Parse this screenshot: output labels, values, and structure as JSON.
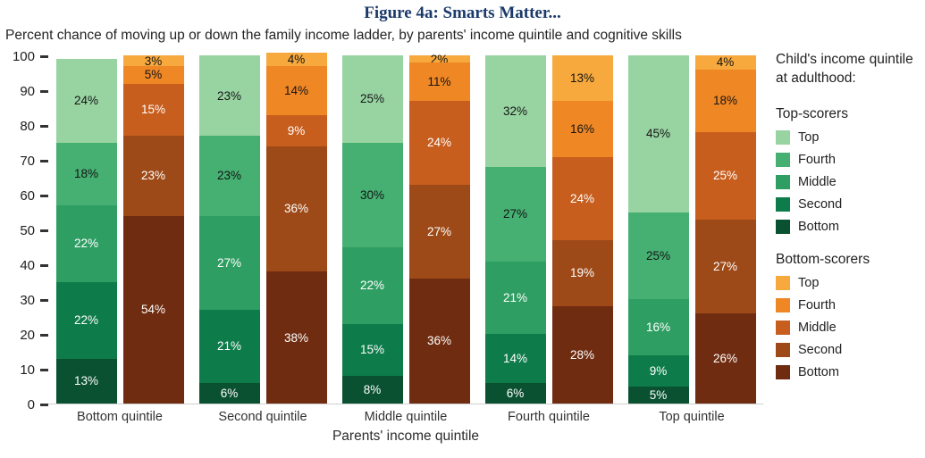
{
  "title": "Figure 4a: Smarts Matter...",
  "subtitle": "Percent chance of moving up or down the family income ladder, by parents' income quintile and cognitive skills",
  "legend": {
    "heading": "Child's income quintile at adulthood:",
    "groups": [
      {
        "label": "Top-scorers",
        "items": [
          {
            "label": "Top",
            "color": "#98d4a2"
          },
          {
            "label": "Fourth",
            "color": "#45b072"
          },
          {
            "label": "Middle",
            "color": "#2f9e63"
          },
          {
            "label": "Second",
            "color": "#0e7c4a"
          },
          {
            "label": "Bottom",
            "color": "#0a5132"
          }
        ]
      },
      {
        "label": "Bottom-scorers",
        "items": [
          {
            "label": "Top",
            "color": "#f7a93d"
          },
          {
            "label": "Fourth",
            "color": "#ef8725"
          },
          {
            "label": "Middle",
            "color": "#c75e1e"
          },
          {
            "label": "Second",
            "color": "#9e4a18"
          },
          {
            "label": "Bottom",
            "color": "#6f2c10"
          }
        ]
      }
    ]
  },
  "chart_data": {
    "type": "bar",
    "stacked": true,
    "title": "Figure 4a: Smarts Matter...",
    "subtitle": "Percent chance of moving up or down the family income ladder, by parents' income quintile and cognitive skills",
    "xlabel": "Parents' income quintile",
    "ylabel": "",
    "ylim": [
      0,
      100
    ],
    "yticks": [
      0,
      10,
      20,
      30,
      40,
      50,
      60,
      70,
      80,
      90,
      100
    ],
    "grid": false,
    "legend_position": "right",
    "unit": "%",
    "categories": [
      "Bottom quintile",
      "Second quintile",
      "Middle quintile",
      "Fourth quintile",
      "Top quintile"
    ],
    "segment_order_bottom_to_top": [
      "Bottom",
      "Second",
      "Middle",
      "Fourth",
      "Top"
    ],
    "series": [
      {
        "name": "Top-scorers",
        "palette_bottom_to_top": [
          "#0a5132",
          "#0e7c4a",
          "#2f9e63",
          "#45b072",
          "#98d4a2"
        ],
        "label_colors_bottom_to_top": [
          "#ffffff",
          "#ffffff",
          "#ffffff",
          "#151515",
          "#151515"
        ],
        "values_bottom_to_top": [
          [
            13,
            22,
            22,
            18,
            24
          ],
          [
            6,
            21,
            27,
            23,
            23
          ],
          [
            8,
            15,
            22,
            30,
            25
          ],
          [
            6,
            14,
            21,
            27,
            32
          ],
          [
            5,
            9,
            16,
            25,
            45
          ]
        ]
      },
      {
        "name": "Bottom-scorers",
        "palette_bottom_to_top": [
          "#6f2c10",
          "#9e4a18",
          "#c75e1e",
          "#ef8725",
          "#f7a93d"
        ],
        "label_colors_bottom_to_top": [
          "#ffffff",
          "#ffffff",
          "#ffffff",
          "#151515",
          "#151515"
        ],
        "values_bottom_to_top": [
          [
            54,
            23,
            15,
            5,
            3
          ],
          [
            38,
            36,
            9,
            14,
            4
          ],
          [
            36,
            27,
            24,
            11,
            2
          ],
          [
            28,
            19,
            24,
            16,
            13
          ],
          [
            26,
            27,
            25,
            18,
            4
          ]
        ]
      }
    ]
  }
}
